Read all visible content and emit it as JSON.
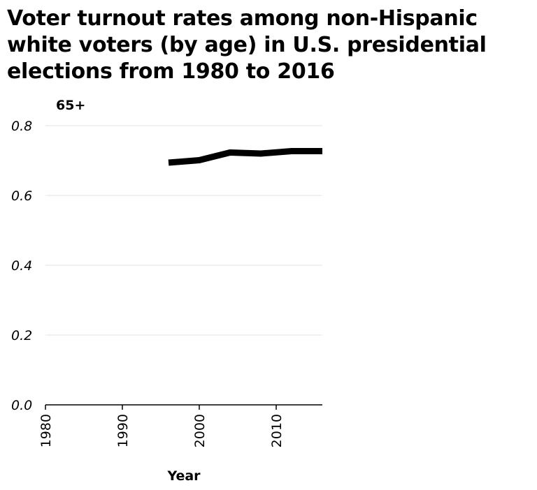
{
  "chart_data": {
    "type": "line",
    "title": "Voter turnout rates among non-Hispanic white voters (by age) in U.S. presidential elections from 1980 to 2016",
    "subtitle": "65+",
    "xlabel": "Year",
    "ylabel": "",
    "xlim": [
      1980,
      2016
    ],
    "ylim": [
      0,
      0.8
    ],
    "xticks": [
      1980,
      1990,
      2000,
      2010
    ],
    "xtick_labels": [
      "1980",
      "1990",
      "2000",
      "2010"
    ],
    "yticks": [
      0,
      0.2,
      0.4,
      0.6,
      0.8
    ],
    "ytick_labels": [
      "0.0",
      "0.2",
      "0.4",
      "0.6",
      "0.8"
    ],
    "grid": "horizontal",
    "series": [
      {
        "x": [
          1996,
          2000,
          2004,
          2008,
          2012,
          2016
        ],
        "values": [
          0.694,
          0.701,
          0.723,
          0.72,
          0.727,
          0.727
        ],
        "color": "#000000"
      }
    ]
  }
}
